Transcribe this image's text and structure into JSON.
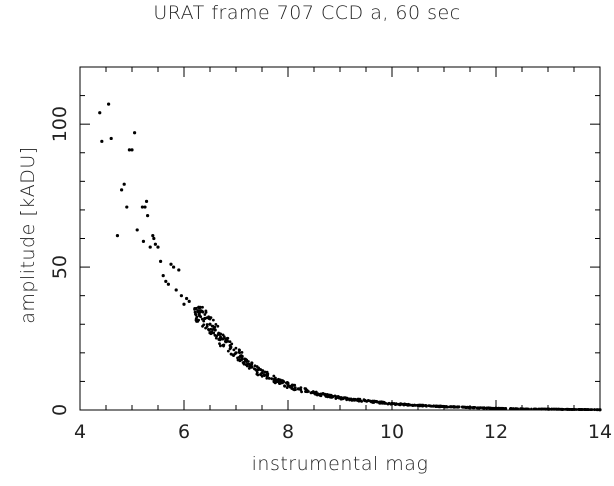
{
  "chart_data": {
    "type": "scatter",
    "title": "URAT frame 707 CCD a, 60 sec",
    "xlabel": "instrumental mag",
    "ylabel": "amplitude [kADU]",
    "xlim": [
      4,
      14
    ],
    "ylim": [
      0,
      120
    ],
    "xticks": [
      4,
      6,
      8,
      10,
      12,
      14
    ],
    "yticks": [
      0,
      50,
      100
    ],
    "grid": false,
    "legend": "none",
    "marker_color": "#000000",
    "points": {
      "x": [
        4.38,
        4.55,
        4.42,
        4.6,
        4.72,
        4.8,
        4.85,
        4.9,
        4.95,
        5.0,
        5.05,
        5.1,
        5.2,
        5.22,
        5.25,
        5.3,
        5.28,
        5.35,
        5.4,
        5.42,
        5.45,
        5.5,
        5.55,
        5.6,
        5.65,
        5.7,
        5.75,
        5.8,
        5.85,
        5.9,
        5.95,
        6.0,
        6.05,
        6.1,
        6.3,
        6.4,
        6.5,
        6.6,
        6.7,
        6.8,
        6.9,
        7.0,
        7.1,
        7.2,
        7.3,
        7.4,
        7.5,
        7.6,
        7.8,
        8.0,
        8.2,
        8.5,
        8.8,
        9.0,
        9.3,
        9.6,
        10.0,
        10.5,
        11.0,
        11.5,
        12.0,
        12.5,
        13.0,
        13.5,
        14.0
      ],
      "y": [
        104,
        107,
        94,
        95,
        61,
        77,
        79,
        71,
        91,
        91,
        97,
        63,
        71,
        59,
        71,
        68,
        73,
        57,
        61,
        60,
        58,
        57,
        52,
        47,
        45,
        44,
        51,
        50,
        42,
        49,
        40,
        37,
        39,
        38,
        33,
        32,
        30,
        28,
        25,
        24,
        22,
        20,
        19,
        17,
        15,
        14,
        13,
        12,
        10,
        8.7,
        7.4,
        6.0,
        4.8,
        4.3,
        3.6,
        3.0,
        2.2,
        1.6,
        1.2,
        0.9,
        0.6,
        0.4,
        0.3,
        0.2,
        0.1
      ]
    }
  }
}
